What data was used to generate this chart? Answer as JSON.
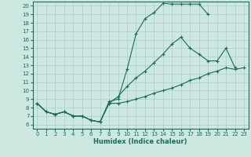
{
  "xlabel": "Humidex (Indice chaleur)",
  "bg_color": "#cce8e0",
  "grid_color": "#aacccc",
  "line_color": "#1a6b5a",
  "xlim": [
    -0.5,
    23.5
  ],
  "ylim": [
    5.5,
    20.5
  ],
  "xticks": [
    0,
    1,
    2,
    3,
    4,
    5,
    6,
    7,
    8,
    9,
    10,
    11,
    12,
    13,
    14,
    15,
    16,
    17,
    18,
    19,
    20,
    21,
    22,
    23
  ],
  "yticks": [
    6,
    7,
    8,
    9,
    10,
    11,
    12,
    13,
    14,
    15,
    16,
    17,
    18,
    19,
    20
  ],
  "line1_x": [
    0,
    1,
    2,
    3,
    4,
    5,
    6,
    7,
    8,
    9,
    10,
    11,
    12,
    13,
    14,
    15,
    16,
    17,
    18,
    19
  ],
  "line1_y": [
    8.5,
    7.5,
    7.2,
    7.5,
    7.0,
    7.0,
    6.5,
    6.3,
    8.7,
    9.0,
    12.5,
    16.7,
    18.5,
    19.2,
    20.3,
    20.2,
    20.2,
    20.2,
    20.2,
    19.0
  ],
  "line2_x": [
    0,
    1,
    2,
    3,
    4,
    5,
    6,
    7,
    8,
    9,
    10,
    11,
    12,
    13,
    14,
    15,
    16,
    17,
    18,
    19,
    20,
    21,
    22
  ],
  "line2_y": [
    8.5,
    7.5,
    7.2,
    7.5,
    7.0,
    7.0,
    6.5,
    6.3,
    8.5,
    9.3,
    10.5,
    11.5,
    12.3,
    13.3,
    14.3,
    15.5,
    16.3,
    15.0,
    14.3,
    13.5,
    13.5,
    15.0,
    12.7
  ],
  "line3_x": [
    0,
    1,
    2,
    3,
    4,
    5,
    6,
    7,
    8,
    9,
    10,
    11,
    12,
    13,
    14,
    15,
    16,
    17,
    18,
    19,
    20,
    21,
    22,
    23
  ],
  "line3_y": [
    8.5,
    7.5,
    7.2,
    7.5,
    7.0,
    7.0,
    6.5,
    6.3,
    8.5,
    8.5,
    8.7,
    9.0,
    9.3,
    9.7,
    10.0,
    10.3,
    10.7,
    11.2,
    11.5,
    12.0,
    12.3,
    12.7,
    12.5,
    12.7
  ]
}
